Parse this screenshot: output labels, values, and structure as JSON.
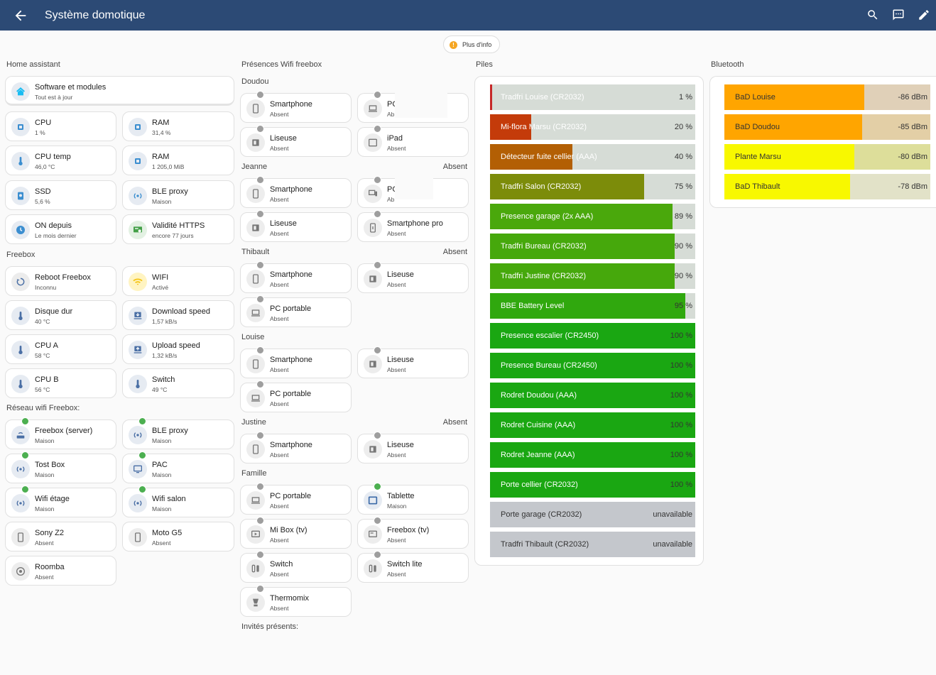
{
  "header": {
    "title": "Système domotique"
  },
  "info_chip": "Plus d'info",
  "sections": {
    "home_assistant": "Home assistant",
    "freebox": "Freebox",
    "reseau": "Réseau wifi Freebox:",
    "presences": "Présences Wifi freebox",
    "piles": "Piles",
    "bluetooth": "Bluetooth",
    "doudou": "Doudou",
    "jeanne": "Jeanne",
    "jeanne_state": "Absent",
    "thibault": "Thibault",
    "thibault_state": "Absent",
    "louise": "Louise",
    "justine": "Justine",
    "justine_state": "Absent",
    "famille": "Famille",
    "invites": "Invités présents:"
  },
  "ha": {
    "software": {
      "name": "Software et modules",
      "state": "Tout est à jour"
    },
    "cpu": {
      "name": "CPU",
      "state": "1 %"
    },
    "ram1": {
      "name": "RAM",
      "state": "31,4 %"
    },
    "cputemp": {
      "name": "CPU temp",
      "state": "46,0 °C"
    },
    "ram2": {
      "name": "RAM",
      "state": "1 205,0 MiB"
    },
    "ssd": {
      "name": "SSD",
      "state": "5,6 %"
    },
    "bleproxy": {
      "name": "BLE proxy",
      "state": "Maison"
    },
    "ondepuis": {
      "name": "ON depuis",
      "state": "Le mois dernier"
    },
    "https": {
      "name": "Validité HTTPS",
      "state": "encore 77 jours"
    }
  },
  "freebox": {
    "reboot": {
      "name": "Reboot Freebox",
      "state": "Inconnu"
    },
    "wifi": {
      "name": "WIFI",
      "state": "Activé"
    },
    "disque": {
      "name": "Disque dur",
      "state": "40 °C"
    },
    "download": {
      "name": "Download speed",
      "state": "1,57 kB/s"
    },
    "cpua": {
      "name": "CPU A",
      "state": "58 °C"
    },
    "upload": {
      "name": "Upload speed",
      "state": "1,32 kB/s"
    },
    "cpub": {
      "name": "CPU B",
      "state": "56 °C"
    },
    "switch": {
      "name": "Switch",
      "state": "49 °C"
    }
  },
  "reseau": {
    "server": {
      "name": "Freebox (server)",
      "state": "Maison"
    },
    "ble": {
      "name": "BLE proxy",
      "state": "Maison"
    },
    "tost": {
      "name": "Tost Box",
      "state": "Maison"
    },
    "pac": {
      "name": "PAC",
      "state": "Maison"
    },
    "etage": {
      "name": "Wifi étage",
      "state": "Maison"
    },
    "salon": {
      "name": "Wifi salon",
      "state": "Maison"
    },
    "sony": {
      "name": "Sony Z2",
      "state": "Absent"
    },
    "moto": {
      "name": "Moto G5",
      "state": "Absent"
    },
    "roomba": {
      "name": "Roomba",
      "state": "Absent"
    }
  },
  "presence": {
    "doudou_phone": {
      "name": "Smartphone",
      "state": "Absent"
    },
    "doudou_pc": {
      "name": "PC",
      "state": "Ab"
    },
    "doudou_liseuse": {
      "name": "Liseuse",
      "state": "Absent"
    },
    "doudou_ipad": {
      "name": "iPad",
      "state": "Absent"
    },
    "jeanne_phone": {
      "name": "Smartphone",
      "state": "Absent"
    },
    "jeanne_pc": {
      "name": "PC",
      "state": "Ab"
    },
    "jeanne_liseuse": {
      "name": "Liseuse",
      "state": "Absent"
    },
    "jeanne_pro": {
      "name": "Smartphone pro",
      "state": "Absent"
    },
    "thibault_phone": {
      "name": "Smartphone",
      "state": "Absent"
    },
    "thibault_liseuse": {
      "name": "Liseuse",
      "state": "Absent"
    },
    "thibault_pc": {
      "name": "PC portable",
      "state": "Absent"
    },
    "louise_phone": {
      "name": "Smartphone",
      "state": "Absent"
    },
    "louise_liseuse": {
      "name": "Liseuse",
      "state": "Absent"
    },
    "louise_pc": {
      "name": "PC portable",
      "state": "Absent"
    },
    "justine_phone": {
      "name": "Smartphone",
      "state": "Absent"
    },
    "justine_liseuse": {
      "name": "Liseuse",
      "state": "Absent"
    },
    "famille_pc": {
      "name": "PC portable",
      "state": "Absent"
    },
    "famille_tablette": {
      "name": "Tablette",
      "state": "Maison"
    },
    "famille_mibox": {
      "name": "Mi Box (tv)",
      "state": "Absent"
    },
    "famille_freebox": {
      "name": "Freebox (tv)",
      "state": "Absent"
    },
    "famille_switch": {
      "name": "Switch",
      "state": "Absent"
    },
    "famille_switchlite": {
      "name": "Switch lite",
      "state": "Absent"
    },
    "famille_thermomix": {
      "name": "Thermomix",
      "state": "Absent"
    }
  },
  "piles": [
    {
      "label": "Tradfri Louise (CR2032)",
      "value": "1 %",
      "level": 1,
      "color": "#c62828"
    },
    {
      "label": "Mi-flora Marsu (CR2032)",
      "value": "20 %",
      "level": 20,
      "color": "#c43b0a"
    },
    {
      "label": "Détecteur fuite cellier (AAA)",
      "value": "40 %",
      "level": 40,
      "color": "#b35f04"
    },
    {
      "label": "Tradfri Salon (CR2032)",
      "value": "75 %",
      "level": 75,
      "color": "#7c8c0a"
    },
    {
      "label": "Presence garage (2x AAA)",
      "value": "89 %",
      "level": 89,
      "color": "#4aa80c"
    },
    {
      "label": "Tradfri Bureau (CR2032)",
      "value": "90 %",
      "level": 90,
      "color": "#46a80c"
    },
    {
      "label": "Tradfri Justine (CR2032)",
      "value": "90 %",
      "level": 90,
      "color": "#46a80c"
    },
    {
      "label": "BBE Battery Level",
      "value": "95 %",
      "level": 95,
      "color": "#30a80e"
    },
    {
      "label": "Presence escalier (CR2450)",
      "value": "100 %",
      "level": 100,
      "color": "#1aa712"
    },
    {
      "label": "Presence Bureau (CR2450)",
      "value": "100 %",
      "level": 100,
      "color": "#1aa712"
    },
    {
      "label": "Rodret Doudou (AAA)",
      "value": "100 %",
      "level": 100,
      "color": "#1aa712"
    },
    {
      "label": "Rodret Cuisine (AAA)",
      "value": "100 %",
      "level": 100,
      "color": "#1aa712"
    },
    {
      "label": "Rodret Jeanne (AAA)",
      "value": "100 %",
      "level": 100,
      "color": "#1aa712"
    },
    {
      "label": "Porte cellier (CR2032)",
      "value": "100 %",
      "level": 100,
      "color": "#1aa712"
    },
    {
      "label": "Porte garage (CR2032)",
      "value": "unavailable",
      "level": 0,
      "color": "#c4c7cc"
    },
    {
      "label": "Tradfri Thibault (CR2032)",
      "value": "unavailable",
      "level": 0,
      "color": "#c4c7cc"
    }
  ],
  "bluetooth": [
    {
      "label": "BaD Louise",
      "value": "-86 dBm",
      "level": 68,
      "color": "#ffa500",
      "track": "#e0d0b8"
    },
    {
      "label": "BaD Doudou",
      "value": "-85 dBm",
      "level": 67,
      "color": "#ffa500",
      "track": "#e3cfa6"
    },
    {
      "label": "Plante Marsu",
      "value": "-80 dBm",
      "level": 63,
      "color": "#f8f800",
      "track": "#ddde9a"
    },
    {
      "label": "BaD Thibault",
      "value": "-78 dBm",
      "level": 61,
      "color": "#f8f800",
      "track": "#e2e2c8"
    }
  ]
}
